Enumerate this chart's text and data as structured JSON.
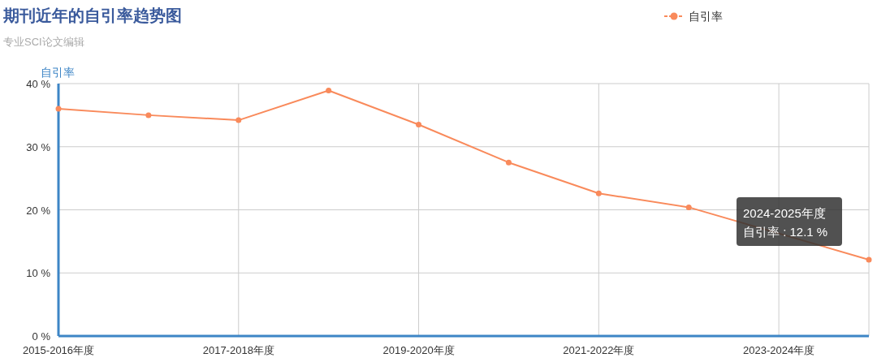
{
  "chart_data": {
    "type": "line",
    "title": "期刊近年的自引率趋势图",
    "subtitle": "专业SCI论文编辑",
    "ylabel": "自引率",
    "categories": [
      "2015-2016年度",
      null,
      "2017-2018年度",
      null,
      "2019-2020年度",
      null,
      "2021-2022年度",
      null,
      "2023-2024年度",
      null
    ],
    "series": [
      {
        "name": "自引率",
        "color": "#f98a5b",
        "values": [
          36.0,
          35.0,
          34.2,
          38.9,
          33.5,
          27.5,
          22.6,
          20.4,
          null,
          12.1
        ]
      }
    ],
    "ylim": [
      0,
      40
    ],
    "yticks": [
      {
        "value": 0,
        "label": "0 %"
      },
      {
        "value": 10,
        "label": "10 %"
      },
      {
        "value": 20,
        "label": "20 %"
      },
      {
        "value": 30,
        "label": "30 %"
      },
      {
        "value": 40,
        "label": "40 %"
      }
    ],
    "grid": true,
    "legend": "top right",
    "marker": "circle",
    "line_style": "solid",
    "annotations": [
      "2024-2025年度",
      "自引率 : 12.1 %"
    ]
  }
}
